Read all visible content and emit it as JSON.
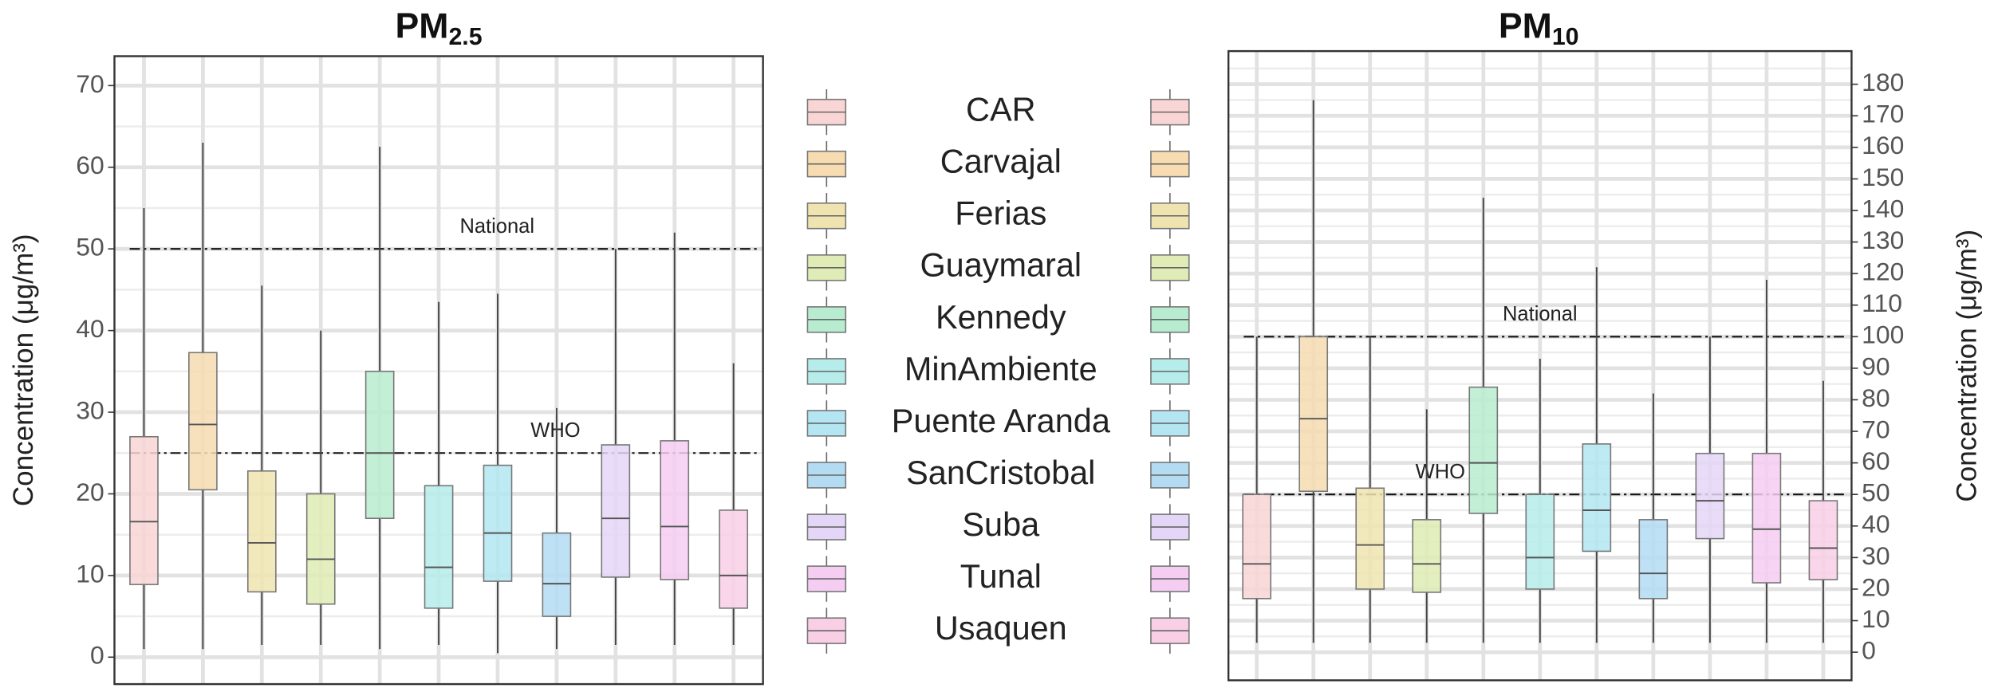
{
  "chart_data": [
    {
      "type": "box",
      "title": "PM",
      "title_subscript": "2.5",
      "y_label": "Concentration (μg/m³)",
      "categories": [
        "CAR",
        "Carvajal",
        "Ferias",
        "Guaymaral",
        "Kennedy",
        "MinAmbiente",
        "Puente Aranda",
        "SanCristobal",
        "Suba",
        "Tunal",
        "Usaquen"
      ],
      "colors": [
        "#f9d5d5",
        "#f6dcb0",
        "#efe4b0",
        "#dfecb5",
        "#b8ecd0",
        "#b6ecea",
        "#b3e6f2",
        "#b3dcf3",
        "#e4d6f7",
        "#f6cdf2",
        "#f9cfe6"
      ],
      "boxes": [
        {
          "min": 1,
          "q1": 8.9,
          "median": 16.6,
          "q3": 27,
          "max": 55
        },
        {
          "min": 1,
          "q1": 20.5,
          "median": 28.5,
          "q3": 37.3,
          "max": 63
        },
        {
          "min": 1.5,
          "q1": 8,
          "median": 14,
          "q3": 22.8,
          "max": 45.5
        },
        {
          "min": 1.5,
          "q1": 6.5,
          "median": 12,
          "q3": 20,
          "max": 40
        },
        {
          "min": 1,
          "q1": 17,
          "median": 25,
          "q3": 35,
          "max": 62.5
        },
        {
          "min": 1.5,
          "q1": 6,
          "median": 11,
          "q3": 21,
          "max": 43.5
        },
        {
          "min": 0.5,
          "q1": 9.3,
          "median": 15.2,
          "q3": 23.5,
          "max": 44.5
        },
        {
          "min": 1,
          "q1": 5,
          "median": 9,
          "q3": 15.2,
          "max": 30.5
        },
        {
          "min": 1.5,
          "q1": 9.8,
          "median": 17,
          "q3": 26,
          "max": 50
        },
        {
          "min": 1.5,
          "q1": 9.5,
          "median": 16,
          "q3": 26.5,
          "max": 52
        },
        {
          "min": 1.5,
          "q1": 6,
          "median": 10,
          "q3": 18,
          "max": 36
        }
      ],
      "reference_lines": [
        {
          "label": "National",
          "value": 50
        },
        {
          "label": "WHO",
          "value": 25
        }
      ],
      "ylim": [
        -3.3,
        73.6
      ],
      "yticks": [
        0,
        10,
        20,
        30,
        40,
        50,
        60,
        70
      ],
      "y_minor_ticks": [
        5,
        15,
        25,
        35,
        45,
        55,
        65
      ],
      "grid": true,
      "y_axis_side": "left"
    },
    {
      "type": "box",
      "title": "PM",
      "title_subscript": "10",
      "y_label": "Concentration (μg/m³)",
      "categories": [
        "CAR",
        "Carvajal",
        "Ferias",
        "Guaymaral",
        "Kennedy",
        "MinAmbiente",
        "Puente Aranda",
        "SanCristobal",
        "Suba",
        "Tunal",
        "Usaquen"
      ],
      "colors": [
        "#f9d5d5",
        "#f6dcb0",
        "#efe4b0",
        "#dfecb5",
        "#b8ecd0",
        "#b6ecea",
        "#b3e6f2",
        "#b3dcf3",
        "#e4d6f7",
        "#f6cdf2",
        "#f9cfe6"
      ],
      "boxes": [
        {
          "min": 3,
          "q1": 17,
          "median": 28,
          "q3": 50,
          "max": 100
        },
        {
          "min": 3,
          "q1": 51,
          "median": 74,
          "q3": 100,
          "max": 175
        },
        {
          "min": 3,
          "q1": 20,
          "median": 34,
          "q3": 52,
          "max": 100
        },
        {
          "min": 3,
          "q1": 19,
          "median": 28,
          "q3": 42,
          "max": 77
        },
        {
          "min": 3,
          "q1": 44,
          "median": 60,
          "q3": 84,
          "max": 144
        },
        {
          "min": 3,
          "q1": 20,
          "median": 30,
          "q3": 50,
          "max": 93
        },
        {
          "min": 3,
          "q1": 32,
          "median": 45,
          "q3": 66,
          "max": 122
        },
        {
          "min": 3,
          "q1": 17,
          "median": 25,
          "q3": 42,
          "max": 82
        },
        {
          "min": 3,
          "q1": 36,
          "median": 48,
          "q3": 63,
          "max": 100
        },
        {
          "min": 3,
          "q1": 22,
          "median": 39,
          "q3": 63,
          "max": 118
        },
        {
          "min": 3,
          "q1": 23,
          "median": 33,
          "q3": 48,
          "max": 86
        }
      ],
      "reference_lines": [
        {
          "label": "National",
          "value": 100
        },
        {
          "label": "WHO",
          "value": 50
        }
      ],
      "ylim": [
        -8.9,
        190.5
      ],
      "yticks": [
        0,
        10,
        20,
        30,
        40,
        50,
        60,
        70,
        80,
        90,
        100,
        110,
        120,
        130,
        140,
        150,
        160,
        170,
        180
      ],
      "y_minor_ticks": [
        5,
        15,
        25,
        35,
        45,
        55,
        65,
        75,
        85,
        95,
        105,
        115,
        125,
        135,
        145,
        155,
        165,
        175,
        185
      ],
      "grid": true,
      "y_axis_side": "right"
    }
  ]
}
